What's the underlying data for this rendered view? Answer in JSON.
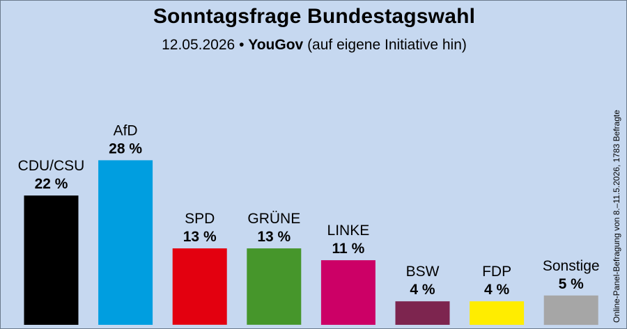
{
  "title": "Sonntagsfrage Bundestagswahl",
  "subtitle": {
    "date": "12.05.2026",
    "separator": "•",
    "pollster": "YouGov",
    "note": "(auf eigene Initiative hin)"
  },
  "side_note": "Online-Panel-Befragung von 8.–11.5.2026, 1783 Befragte",
  "chart_data": {
    "type": "bar",
    "title": "Sonntagsfrage Bundestagswahl",
    "categories": [
      "CDU/CSU",
      "AfD",
      "SPD",
      "GRÜNE",
      "LINKE",
      "BSW",
      "FDP",
      "Sonstige"
    ],
    "values": [
      22,
      28,
      13,
      13,
      11,
      4,
      4,
      5
    ],
    "value_labels": [
      "22 %",
      "28 %",
      "13 %",
      "13 %",
      "11 %",
      "4 %",
      "4 %",
      "5 %"
    ],
    "colors": [
      "#000000",
      "#009ee0",
      "#e3000f",
      "#46962b",
      "#cc0066",
      "#7d254f",
      "#ffed00",
      "#a6a6a6"
    ],
    "unit": "%",
    "ylim": [
      0,
      28
    ],
    "grid": false,
    "legend": "none"
  }
}
